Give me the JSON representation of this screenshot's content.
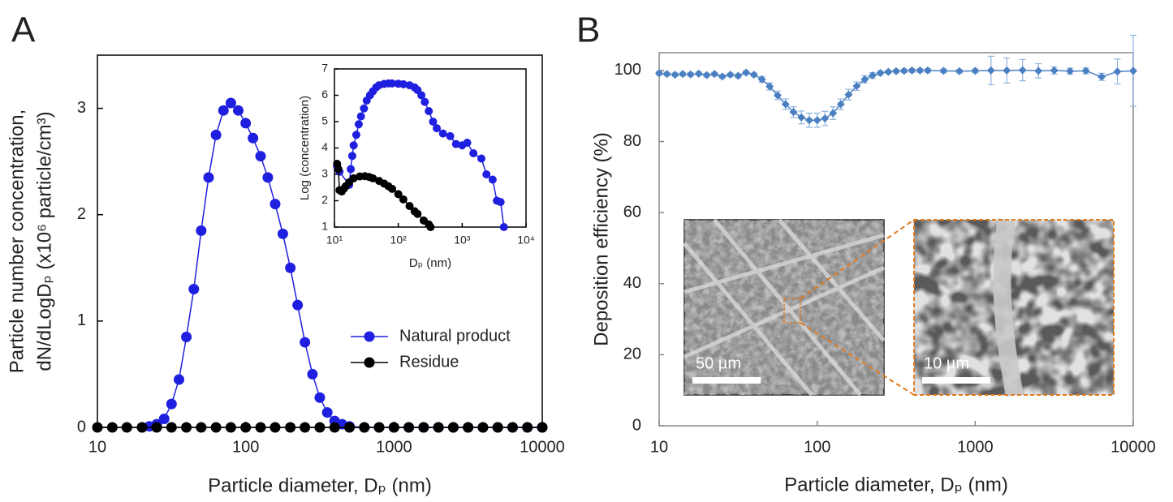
{
  "chart_data": [
    {
      "type": "line",
      "label": "A",
      "xscale": "log",
      "xlabel": "Particle diameter, Dₚ (nm)",
      "ylabel": [
        "Particle number concentration,",
        "dN/dLogDₚ (x10⁶ particle/cm³)"
      ],
      "xlim": [
        10,
        10000
      ],
      "xticks": [
        10,
        100,
        1000,
        10000
      ],
      "ylim": [
        0,
        3.5
      ],
      "yticks": [
        0,
        1,
        2,
        3
      ],
      "legend": "lower right",
      "marker": "circle",
      "series": [
        {
          "name": "Natural product",
          "color": "#1f1fe0",
          "x": [
            20,
            22.4,
            25.1,
            28.2,
            31.6,
            35.5,
            39.8,
            44.7,
            50.1,
            56.2,
            63.1,
            70.8,
            79.4,
            89.1,
            100,
            112,
            126,
            141,
            158,
            178,
            200,
            224,
            251,
            282,
            316,
            355,
            398,
            447,
            501,
            631,
            794,
            1000,
            1259,
            1585,
            1995,
            2512,
            3162,
            3981,
            5012,
            6310,
            7943,
            10000
          ],
          "values": [
            0,
            0.01,
            0.03,
            0.08,
            0.22,
            0.45,
            0.85,
            1.3,
            1.85,
            2.35,
            2.75,
            2.98,
            3.05,
            2.98,
            2.86,
            2.72,
            2.55,
            2.35,
            2.1,
            1.82,
            1.5,
            1.15,
            0.8,
            0.5,
            0.28,
            0.14,
            0.06,
            0.03,
            0.01,
            0,
            0,
            0,
            0,
            0,
            0,
            0,
            0,
            0,
            0,
            0,
            0,
            0
          ]
        },
        {
          "name": "Residue",
          "color": "#000000",
          "x": [
            10,
            12.6,
            15.8,
            20,
            25.1,
            31.6,
            39.8,
            50.1,
            63.1,
            79.4,
            100,
            126,
            158,
            200,
            251,
            316,
            398,
            501,
            631,
            794,
            1000,
            1259,
            1585,
            1995,
            2512,
            3162,
            3981,
            5012,
            6310,
            7943,
            10000
          ],
          "values": [
            0,
            0,
            0,
            0,
            0,
            0,
            0,
            0,
            0,
            0,
            0,
            0,
            0,
            0,
            0,
            0,
            0,
            0,
            0,
            0,
            0,
            0,
            0,
            0,
            0,
            0,
            0,
            0,
            0,
            0,
            0
          ]
        }
      ]
    },
    {
      "type": "line",
      "xscale": "log",
      "xlabel": "Dₚ (nm)",
      "ylabel": "Log (concentration)",
      "xlim": [
        10,
        10000
      ],
      "xticks": [
        {
          "value": 10,
          "label": "10¹"
        },
        {
          "value": 100,
          "label": "10²"
        },
        {
          "value": 1000,
          "label": "10³"
        },
        {
          "value": 10000,
          "label": "10⁴"
        }
      ],
      "ylim": [
        1,
        7
      ],
      "yticks": [
        1,
        2,
        3,
        4,
        5,
        6,
        7
      ],
      "marker": "circle",
      "series": [
        {
          "color": "#1f1fe0",
          "x": [
            11,
            12,
            17,
            18,
            19,
            20,
            22,
            24,
            26,
            29,
            32,
            36,
            40,
            45,
            50,
            60,
            70,
            80,
            100,
            120,
            150,
            180,
            200,
            230,
            260,
            300,
            350,
            400,
            500,
            650,
            800,
            1000,
            1200,
            1500,
            2000,
            2400,
            3000,
            3500,
            4000,
            4500
          ],
          "values": [
            3.3,
            3.1,
            2.6,
            3.2,
            3.7,
            4.1,
            4.5,
            4.9,
            5.2,
            5.5,
            5.8,
            6.0,
            6.15,
            6.3,
            6.38,
            6.43,
            6.45,
            6.45,
            6.44,
            6.42,
            6.38,
            6.3,
            6.2,
            6.0,
            5.75,
            5.4,
            5.0,
            4.75,
            4.55,
            4.45,
            4.15,
            4.1,
            4.2,
            3.8,
            3.6,
            3.0,
            2.8,
            2.0,
            1.95,
            1.0
          ]
        },
        {
          "color": "#000000",
          "x": [
            11,
            11.5,
            12,
            13,
            14,
            15,
            17,
            20,
            25,
            30,
            35,
            40,
            50,
            60,
            70,
            80,
            100,
            120,
            150,
            180,
            200,
            250,
            300,
            320
          ],
          "values": [
            3.4,
            3.2,
            2.4,
            2.35,
            2.45,
            2.55,
            2.7,
            2.85,
            2.92,
            2.93,
            2.9,
            2.85,
            2.75,
            2.65,
            2.55,
            2.45,
            2.25,
            2.05,
            1.8,
            1.6,
            1.5,
            1.25,
            1.1,
            1.0
          ]
        }
      ]
    },
    {
      "type": "line",
      "label": "B",
      "xscale": "log",
      "xlabel": "Particle diameter, Dₚ (nm)",
      "ylabel": "Deposition efficiency (%)",
      "xlim": [
        10,
        10000
      ],
      "xticks": [
        10,
        100,
        1000,
        10000
      ],
      "ylim": [
        0,
        105
      ],
      "yticks": [
        0,
        20,
        40,
        60,
        80,
        100
      ],
      "marker": "diamond",
      "annotations": [
        "50 µm",
        "10 µm"
      ],
      "series": [
        {
          "color": "#4a7fc1",
          "error_color": "#8fb3de",
          "x": [
            10,
            11.2,
            12.6,
            14.1,
            15.8,
            17.8,
            20,
            22.4,
            25.1,
            28.2,
            31.6,
            35.5,
            39.8,
            44.7,
            50.1,
            56.2,
            63.1,
            70.8,
            79.4,
            89.1,
            100,
            112,
            126,
            141,
            158,
            178,
            200,
            224,
            251,
            282,
            316,
            355,
            398,
            447,
            501,
            631,
            794,
            1000,
            1259,
            1585,
            1995,
            2512,
            3162,
            3981,
            5012,
            6310,
            7943,
            10000
          ],
          "values": [
            99.2,
            99,
            98.8,
            99,
            98.9,
            99.1,
            98.7,
            99,
            98.3,
            98.8,
            98.5,
            99.4,
            98.8,
            97.5,
            95.5,
            93,
            90.5,
            88.3,
            86.8,
            86,
            86,
            86.5,
            88,
            90.5,
            93.2,
            95.6,
            97.5,
            98.6,
            99.3,
            99.6,
            99.8,
            99.9,
            100,
            100,
            100,
            99.9,
            99.8,
            99.9,
            100,
            100,
            100.1,
            99.9,
            100,
            99.8,
            99.9,
            98.2,
            99.7,
            99.9
          ],
          "errors": [
            0.5,
            0.5,
            0.5,
            0.5,
            0.5,
            0.5,
            0.5,
            0.5,
            0.5,
            0.5,
            0.5,
            0.5,
            0.5,
            0.8,
            1,
            1.2,
            1.5,
            1.5,
            1.8,
            2,
            2,
            2,
            1.8,
            1.5,
            1.5,
            1.2,
            1,
            0.8,
            0.6,
            0.5,
            0.5,
            0.5,
            0.5,
            0.5,
            0.5,
            0.5,
            0.5,
            0.5,
            4,
            3.5,
            3,
            2,
            1,
            0.8,
            0.8,
            1,
            3.5,
            10
          ]
        }
      ]
    }
  ]
}
